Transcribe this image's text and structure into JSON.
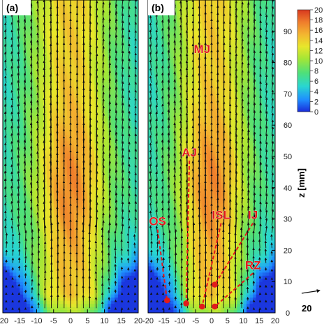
{
  "chart_data": {
    "type": "heatmap",
    "panels": [
      {
        "label": "(a)",
        "annotations": []
      },
      {
        "label": "(b)",
        "annotations": [
          {
            "text": "MJ",
            "x": -3,
            "y": 83,
            "target": null
          },
          {
            "text": "AJ",
            "x": -7,
            "y": 50,
            "target": [
              -8,
              3
            ]
          },
          {
            "text": "OS",
            "x": -17,
            "y": 28,
            "target": [
              -14,
              4
            ]
          },
          {
            "text": "ISL",
            "x": 3,
            "y": 30,
            "target": [
              -3,
              2
            ]
          },
          {
            "text": "IJ",
            "x": 13,
            "y": 30,
            "target": [
              1,
              9
            ]
          },
          {
            "text": "RZ",
            "x": 13,
            "y": 14,
            "target": [
              1,
              2
            ]
          }
        ]
      }
    ],
    "xlim": [
      -20,
      20
    ],
    "ylim": [
      0,
      100
    ],
    "xticks": [
      "-20",
      "-15",
      "-10",
      "-5",
      "0",
      "5",
      "10",
      "15",
      "20"
    ],
    "yticks": [
      "0",
      "10",
      "20",
      "30",
      "40",
      "50",
      "60",
      "70",
      "80",
      "90"
    ],
    "ylabel": "z [mm]",
    "colorbar": {
      "min": 0,
      "max": 20,
      "ticks": [
        "20",
        "18",
        "16",
        "14",
        "12",
        "10",
        "8",
        "6",
        "4",
        "2",
        "0"
      ],
      "colors": [
        "#1a2bd9",
        "#1f8fff",
        "#29d6d0",
        "#4ee07a",
        "#a4e636",
        "#e8e62b",
        "#f3b530",
        "#ef7d2c",
        "#d8381f"
      ]
    },
    "reference_vector": {
      "label": "20"
    },
    "field": {
      "core_speed": 17,
      "description_values": [
        {
          "z": 95,
          "core": 15,
          "edge": 9
        },
        {
          "z": 60,
          "core": 16,
          "edge": 10
        },
        {
          "z": 40,
          "core": 18,
          "edge": 11
        },
        {
          "z": 20,
          "core": 14,
          "edge": 3
        },
        {
          "z": 5,
          "core": 8,
          "edge": 1
        }
      ]
    }
  }
}
